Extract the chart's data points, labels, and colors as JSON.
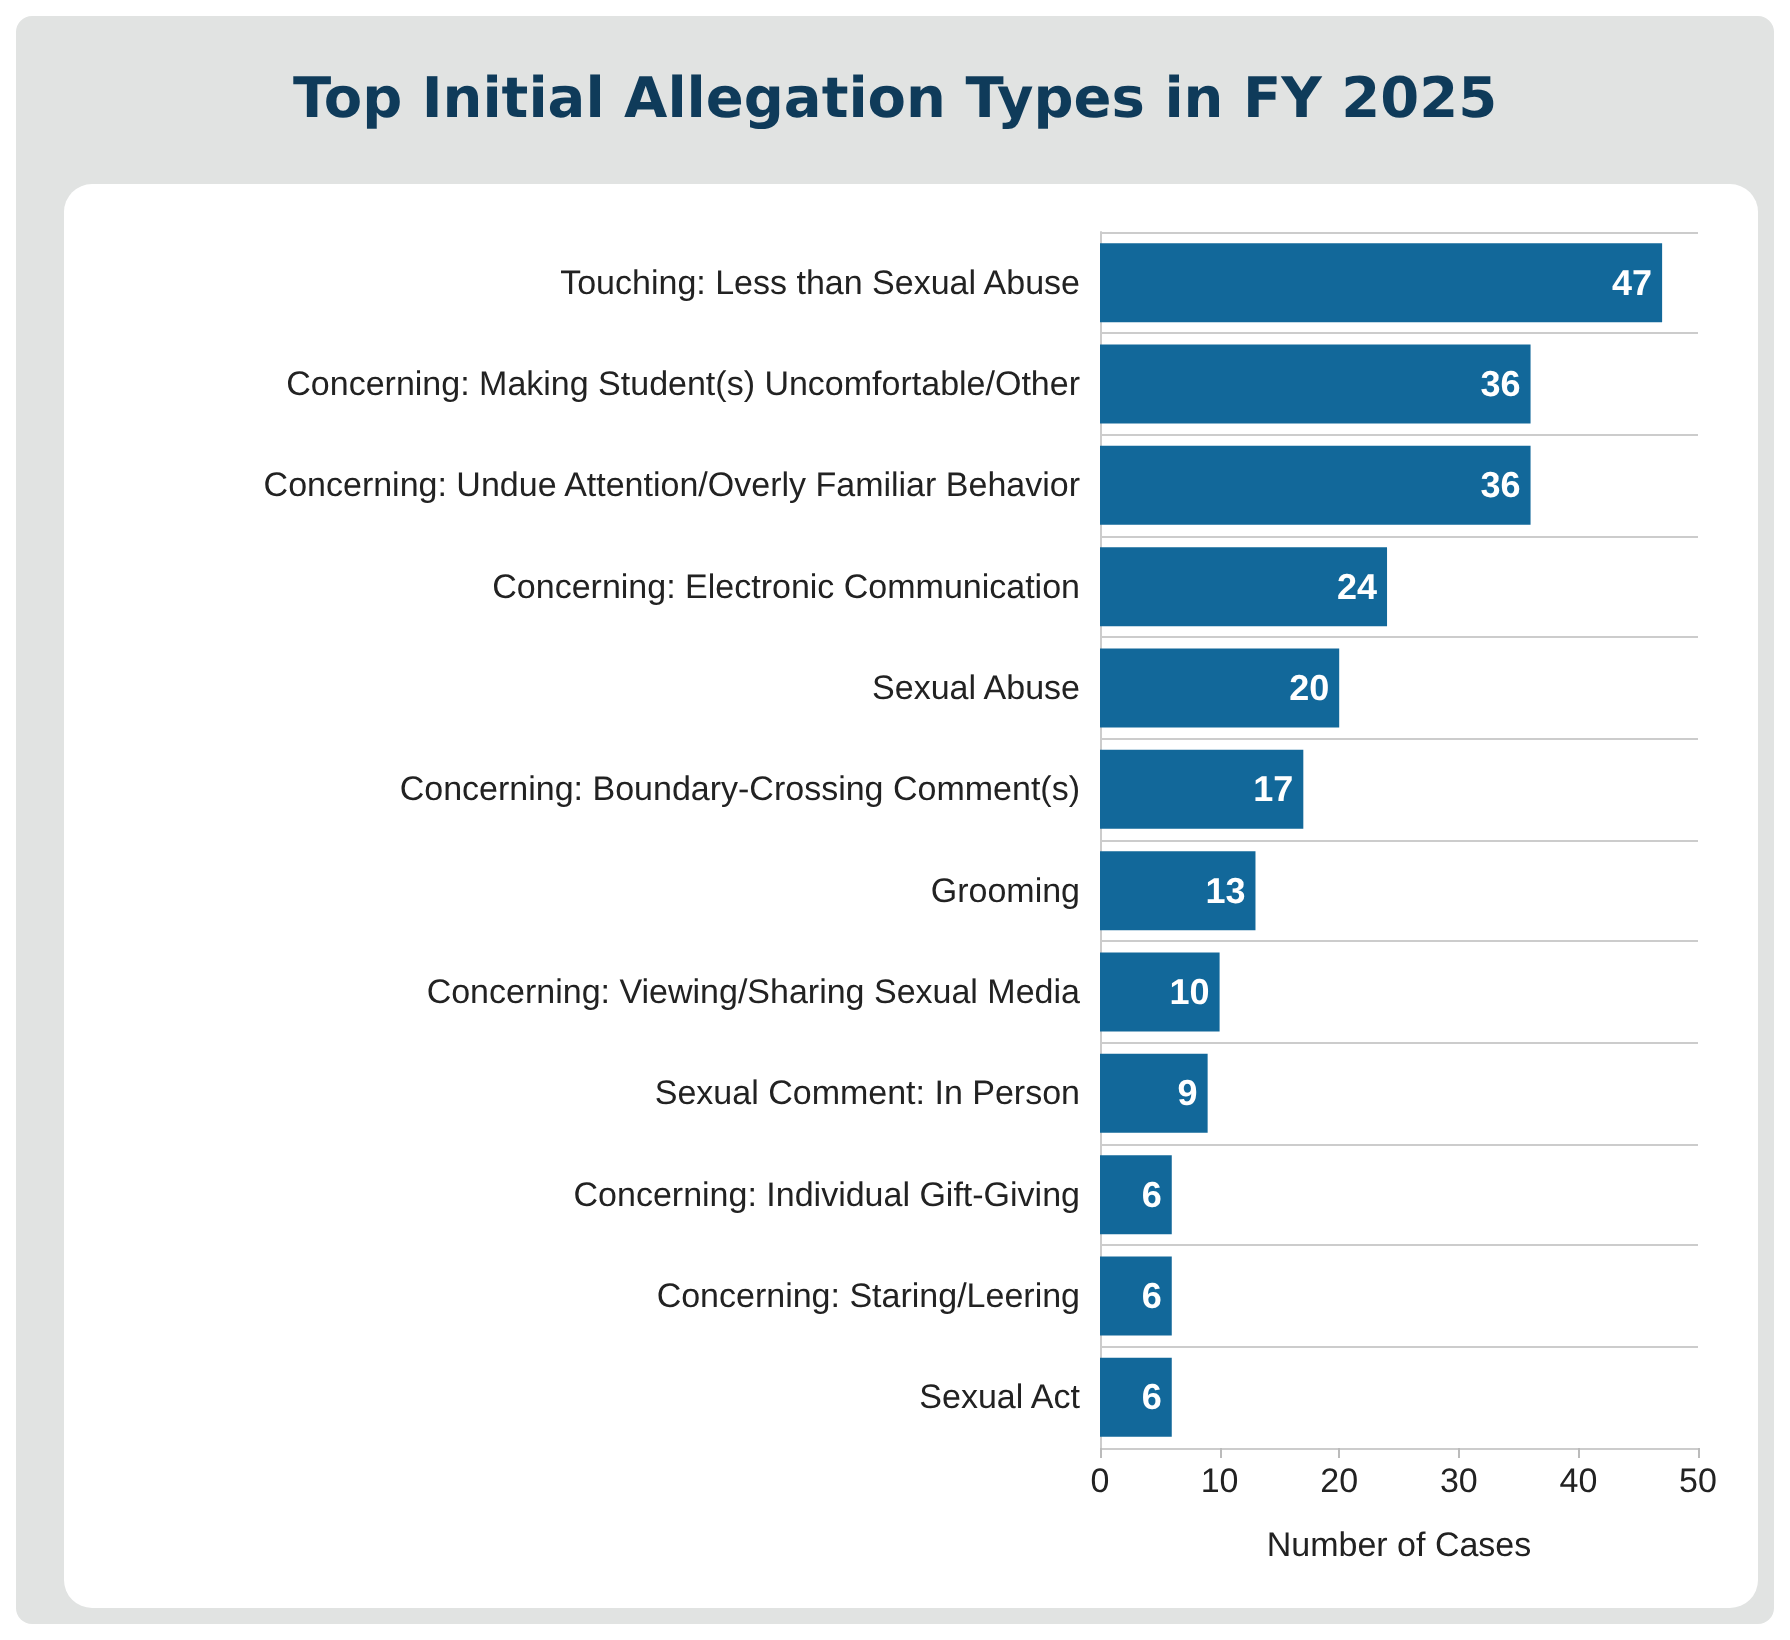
{
  "chart_data": {
    "type": "bar",
    "orientation": "horizontal",
    "title": "Top Initial Allegation Types in FY 2025",
    "xlabel": "Number of Cases",
    "categories": [
      "Touching: Less than Sexual Abuse",
      "Concerning: Making Student(s) Uncomfortable/Other",
      "Concerning: Undue Attention/Overly Familiar Behavior",
      "Concerning: Electronic Communication",
      "Sexual Abuse",
      "Concerning: Boundary-Crossing Comment(s)",
      "Grooming",
      "Concerning: Viewing/Sharing Sexual Media",
      "Sexual Comment: In Person",
      "Concerning: Individual Gift-Giving",
      "Concerning: Staring/Leering",
      "Sexual Act"
    ],
    "values": [
      47,
      36,
      36,
      24,
      20,
      17,
      13,
      10,
      9,
      6,
      6,
      6
    ],
    "color": "#12689a",
    "xlim": [
      0,
      50
    ],
    "xticks": [
      0,
      10,
      20,
      30,
      40,
      50
    ],
    "grid": "y",
    "data_labels": true
  }
}
